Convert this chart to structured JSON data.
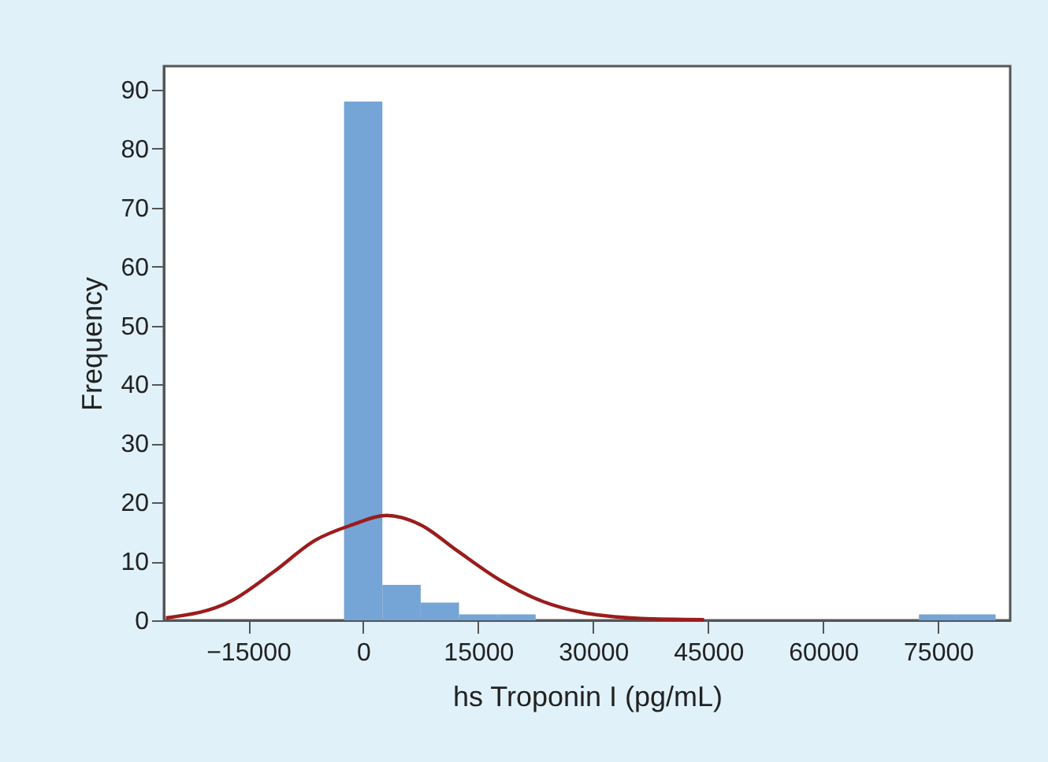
{
  "chart_data": {
    "type": "histogram",
    "xlabel": "hs Troponin I (pg/mL)",
    "ylabel": "Frequency",
    "xlim": [
      -26000,
      84400
    ],
    "ylim": [
      0,
      94
    ],
    "xticks": [
      -15000,
      0,
      15000,
      30000,
      45000,
      60000,
      75000
    ],
    "yticks": [
      0,
      10,
      20,
      30,
      40,
      50,
      60,
      70,
      80,
      90
    ],
    "grid": false,
    "series": [
      {
        "color": "#75a4d6",
        "bins": [
          -2500,
          2500,
          7500,
          12500,
          17500,
          22500,
          27500,
          32500,
          37500,
          42500,
          47500,
          52500,
          57500,
          62500,
          67500,
          72500,
          77500,
          82500
        ],
        "values": [
          88,
          6,
          3,
          1,
          1,
          0,
          0,
          0,
          0,
          0,
          0,
          0,
          0,
          0,
          0,
          1,
          1
        ]
      },
      {
        "type": "line",
        "color": "#9b1c1c",
        "x": [
          -25730,
          -17200,
          -11700,
          -6230,
          -1440,
          3020,
          7480,
          12270,
          17750,
          23220,
          28700,
          32800,
          36240,
          44460
        ],
        "values": [
          0.4,
          3.3,
          8.2,
          13.6,
          16.2,
          17.8,
          16.2,
          11.8,
          6.9,
          3.3,
          1.3,
          0.6,
          0.3,
          0.1
        ]
      }
    ]
  }
}
